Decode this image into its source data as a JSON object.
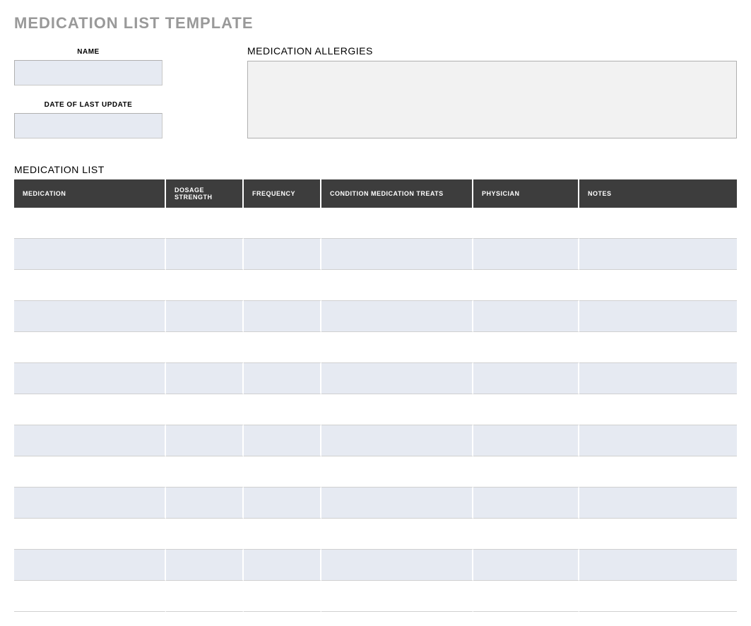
{
  "title": "MEDICATION LIST TEMPLATE",
  "fields": {
    "name_label": "NAME",
    "name_value": "",
    "date_label": "DATE OF LAST UPDATE",
    "date_value": "",
    "allergies_label": "MEDICATION ALLERGIES",
    "allergies_value": ""
  },
  "list_label": "MEDICATION LIST",
  "table": {
    "columns": [
      "MEDICATION",
      "DOSAGE STRENGTH",
      "FREQUENCY",
      "CONDITION MEDICATION TREATS",
      "PHYSICIAN",
      "NOTES"
    ],
    "rows": [
      [
        "",
        "",
        "",
        "",
        "",
        ""
      ],
      [
        "",
        "",
        "",
        "",
        "",
        ""
      ],
      [
        "",
        "",
        "",
        "",
        "",
        ""
      ],
      [
        "",
        "",
        "",
        "",
        "",
        ""
      ],
      [
        "",
        "",
        "",
        "",
        "",
        ""
      ],
      [
        "",
        "",
        "",
        "",
        "",
        ""
      ],
      [
        "",
        "",
        "",
        "",
        "",
        ""
      ],
      [
        "",
        "",
        "",
        "",
        "",
        ""
      ],
      [
        "",
        "",
        "",
        "",
        "",
        ""
      ],
      [
        "",
        "",
        "",
        "",
        "",
        ""
      ],
      [
        "",
        "",
        "",
        "",
        "",
        ""
      ],
      [
        "",
        "",
        "",
        "",
        "",
        ""
      ],
      [
        "",
        "",
        "",
        "",
        "",
        ""
      ]
    ],
    "header_bg": "#3d3d3d",
    "header_color": "#ffffff",
    "row_odd_bg": "#ffffff",
    "row_even_bg": "#e6eaf2",
    "border_color": "#d0d0d0"
  },
  "colors": {
    "title_color": "#999999",
    "input_bg": "#e6eaf2",
    "allergies_bg": "#f2f2f2",
    "page_bg": "#ffffff"
  }
}
